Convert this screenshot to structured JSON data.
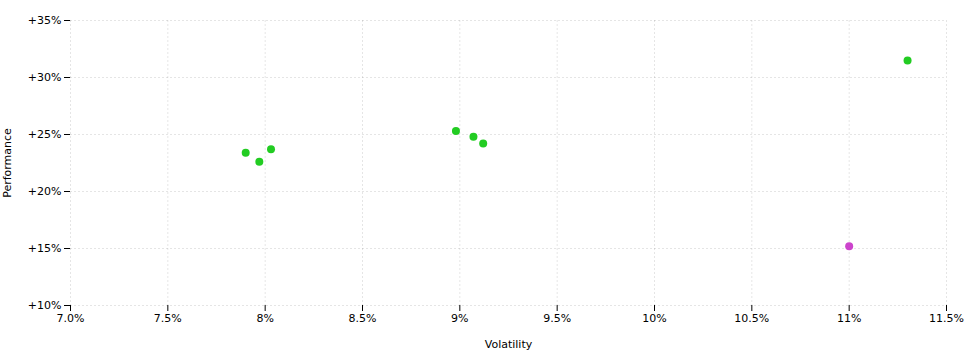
{
  "chart_data": {
    "type": "scatter",
    "xlabel": "Volatility",
    "ylabel": "Performance",
    "xlim": [
      0.07,
      0.115
    ],
    "ylim": [
      0.1,
      0.35
    ],
    "xticks": [
      {
        "value": 0.07,
        "label": "7.0%"
      },
      {
        "value": 0.075,
        "label": "7.5%"
      },
      {
        "value": 0.08,
        "label": "8%"
      },
      {
        "value": 0.085,
        "label": "8.5%"
      },
      {
        "value": 0.09,
        "label": "9%"
      },
      {
        "value": 0.095,
        "label": "9.5%"
      },
      {
        "value": 0.1,
        "label": "10%"
      },
      {
        "value": 0.105,
        "label": "10.5%"
      },
      {
        "value": 0.11,
        "label": "11%"
      },
      {
        "value": 0.115,
        "label": "11.5%"
      }
    ],
    "yticks": [
      {
        "value": 0.1,
        "label": "+10%"
      },
      {
        "value": 0.15,
        "label": "+15%"
      },
      {
        "value": 0.2,
        "label": "+20%"
      },
      {
        "value": 0.25,
        "label": "+25%"
      },
      {
        "value": 0.3,
        "label": "+30%"
      },
      {
        "value": 0.35,
        "label": "+35%"
      }
    ],
    "grid": true,
    "series": [
      {
        "color": "#22cc22",
        "x": [
          0.079,
          0.0803,
          0.0797,
          0.0898,
          0.0907,
          0.0912,
          0.113
        ],
        "values": [
          0.234,
          0.237,
          0.226,
          0.253,
          0.248,
          0.242,
          0.315
        ]
      },
      {
        "color": "#cc44cc",
        "x": [
          0.11
        ],
        "values": [
          0.152
        ]
      }
    ]
  }
}
